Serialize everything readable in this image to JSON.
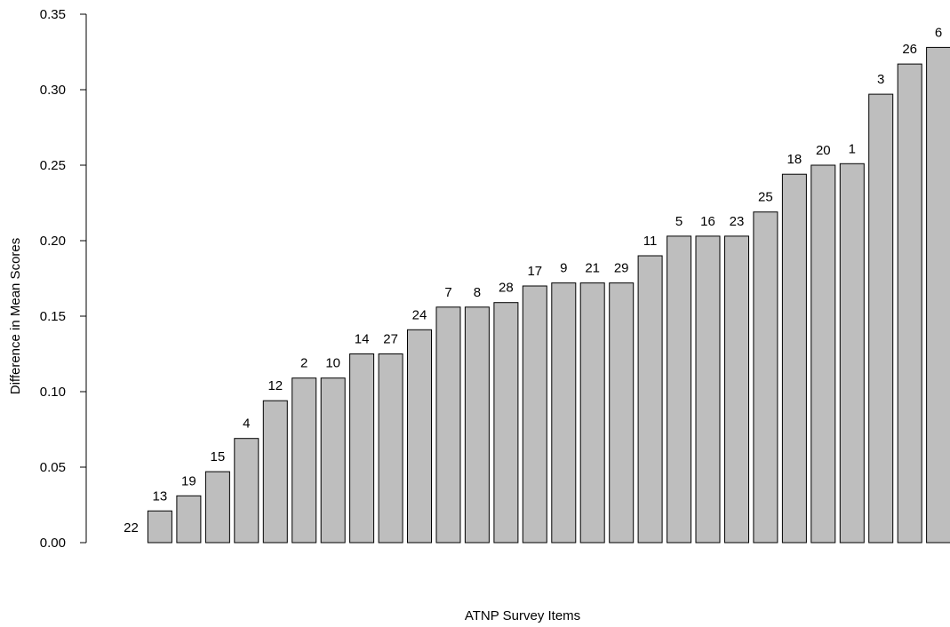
{
  "chart_data": {
    "type": "bar",
    "title": "",
    "xlabel": "ATNP Survey Items",
    "ylabel": "Difference in Mean Scores",
    "ylim": [
      0,
      0.35
    ],
    "yticks": [
      "0.00",
      "0.05",
      "0.10",
      "0.15",
      "0.20",
      "0.25",
      "0.30",
      "0.35"
    ],
    "grid": false,
    "bar_color": "#bebebe",
    "edge_color": "#000000",
    "categories": [
      "22",
      "13",
      "19",
      "15",
      "4",
      "12",
      "2",
      "10",
      "14",
      "27",
      "24",
      "7",
      "8",
      "28",
      "17",
      "9",
      "21",
      "29",
      "11",
      "5",
      "16",
      "23",
      "25",
      "18",
      "20",
      "1",
      "3",
      "26",
      "6"
    ],
    "values": [
      0.0,
      0.021,
      0.031,
      0.047,
      0.069,
      0.094,
      0.109,
      0.109,
      0.125,
      0.125,
      0.141,
      0.156,
      0.156,
      0.159,
      0.17,
      0.172,
      0.172,
      0.172,
      0.19,
      0.203,
      0.203,
      0.203,
      0.219,
      0.244,
      0.25,
      0.251,
      0.297,
      0.317,
      0.328
    ]
  }
}
